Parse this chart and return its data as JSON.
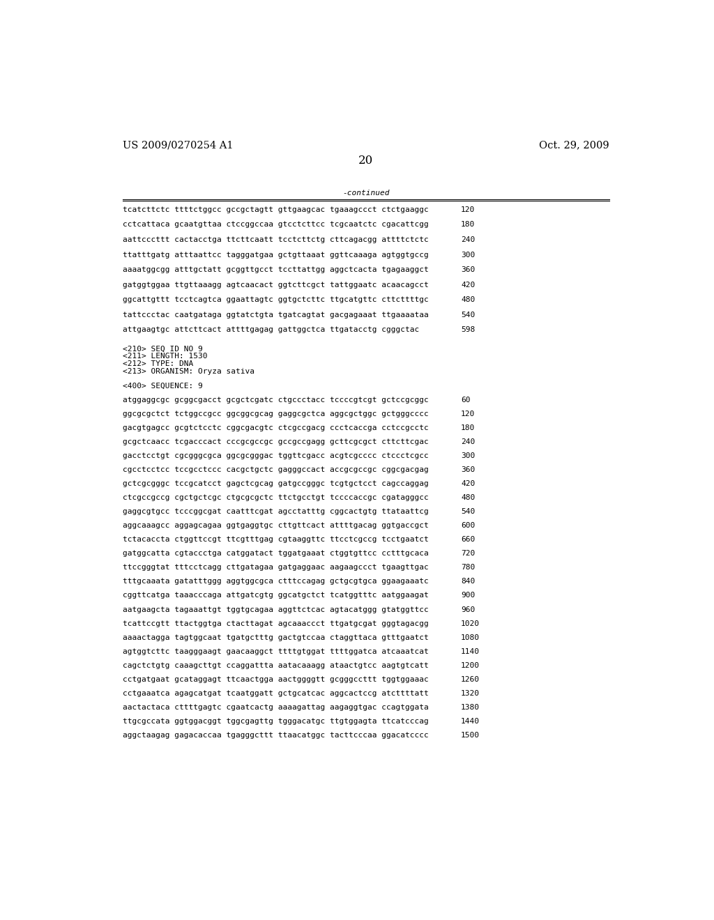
{
  "header_left": "US 2009/0270254 A1",
  "header_right": "Oct. 29, 2009",
  "page_number": "20",
  "continued_label": "-continued",
  "background_color": "#ffffff",
  "text_color": "#000000",
  "font_size_header": 10.5,
  "font_size_body": 8.0,
  "font_size_page": 12,
  "sequence_lines_top": [
    [
      "tcatcttctc ttttctggcc gccgctagtt gttgaagcac tgaaagccct ctctgaaggc",
      "120"
    ],
    [
      "cctcattaca gcaatgttaa ctccggccaa gtcctcttcc tcgcaatctc cgacattcgg",
      "180"
    ],
    [
      "aattcccttt cactacctga ttcttcaatt tcctcttctg cttcagacgg attttctctc",
      "240"
    ],
    [
      "ttatttgatg atttaattcc tagggatgaa gctgttaaat ggttcaaaga agtggtgccg",
      "300"
    ],
    [
      "aaaatggcgg atttgctatt gcggttgcct tccttattgg aggctcacta tgagaaggct",
      "360"
    ],
    [
      "gatggtggaa ttgttaaagg agtcaacact ggtcttcgct tattggaatc acaacagcct",
      "420"
    ],
    [
      "ggcattgttt tcctcagtca ggaattagtc ggtgctcttc ttgcatgttc cttcttttgc",
      "480"
    ],
    [
      "tattccctac caatgataga ggtatctgta tgatcagtat gacgagaaat ttgaaaataa",
      "540"
    ],
    [
      "attgaagtgc attcttcact attttgagag gattggctca ttgatacctg cgggctac",
      "598"
    ]
  ],
  "metadata_lines": [
    "<210> SEQ ID NO 9",
    "<211> LENGTH: 1530",
    "<212> TYPE: DNA",
    "<213> ORGANISM: Oryza sativa"
  ],
  "sequence_label": "<400> SEQUENCE: 9",
  "sequence_lines_bottom": [
    [
      "atggaggcgc gcggcgacct gcgctcgatc ctgccctacc tccccgtcgt gctccgcggc",
      "60"
    ],
    [
      "ggcgcgctct tctggccgcc ggcggcgcag gaggcgctca aggcgctggc gctgggcccc",
      "120"
    ],
    [
      "gacgtgagcc gcgtctcctc cggcgacgtc ctcgccgacg ccctcaccga cctccgcctc",
      "180"
    ],
    [
      "gcgctcaacc tcgacccact cccgcgccgc gccgccgagg gcttcgcgct cttcttcgac",
      "240"
    ],
    [
      "gacctcctgt cgcgggcgca ggcgcgggac tggttcgacc acgtcgcccc ctccctcgcc",
      "300"
    ],
    [
      "cgcctcctcc tccgcctccc cacgctgctc gagggccact accgcgccgc cggcgacgag",
      "360"
    ],
    [
      "gctcgcgggc tccgcatcct gagctcgcag gatgccgggc tcgtgctcct cagccaggag",
      "420"
    ],
    [
      "ctcgccgccg cgctgctcgc ctgcgcgctc ttctgcctgt tccccaccgc cgatagggcc",
      "480"
    ],
    [
      "gaggcgtgcc tcccggcgat caatttcgat agcctatttg cggcactgtg ttataattcg",
      "540"
    ],
    [
      "aggcaaagcc aggagcagaa ggtgaggtgc cttgttcact attttgacag ggtgaccgct",
      "600"
    ],
    [
      "tctacaccta ctggttccgt ttcgtttgag cgtaaggttc ttcctcgccg tcctgaatct",
      "660"
    ],
    [
      "gatggcatta cgtaccctga catggatact tggatgaaat ctggtgttcc cctttgcaca",
      "720"
    ],
    [
      "ttccgggtat tttcctcagg cttgatagaa gatgaggaac aagaagccct tgaagttgac",
      "780"
    ],
    [
      "tttgcaaata gatatttggg aggtggcgca ctttccagag gctgcgtgca ggaagaaatc",
      "840"
    ],
    [
      "cggttcatga taaacccaga attgatcgtg ggcatgctct tcatggtttc aatggaagat",
      "900"
    ],
    [
      "aatgaagcta tagaaattgt tggtgcagaa aggttctcac agtacatggg gtatggttcc",
      "960"
    ],
    [
      "tcattccgtt ttactggtga ctacttagat agcaaaccct ttgatgcgat gggtagacgg",
      "1020"
    ],
    [
      "aaaactagga tagtggcaat tgatgctttg gactgtccaa ctaggttaca gtttgaatct",
      "1080"
    ],
    [
      "agtggtcttc taagggaagt gaacaaggct ttttgtggat ttttggatca atcaaatcat",
      "1140"
    ],
    [
      "cagctctgtg caaagcttgt ccaggattta aatacaaagg ataactgtcc aagtgtcatt",
      "1200"
    ],
    [
      "cctgatgaat gcataggagt ttcaactgga aactggggtt gcgggccttt tggtggaaac",
      "1260"
    ],
    [
      "cctgaaatca agagcatgat tcaatggatt gctgcatcac aggcactccg atcttttatt",
      "1320"
    ],
    [
      "aactactaca cttttgagtc cgaatcactg aaaagattag aagaggtgac ccagtggata",
      "1380"
    ],
    [
      "ttgcgccata ggtggacggt tggcgagttg tgggacatgc ttgtggagta ttcatcccag",
      "1440"
    ],
    [
      "aggctaagag gagacaccaa tgagggcttt ttaacatggc tacttcccaa ggacatcccc",
      "1500"
    ]
  ]
}
